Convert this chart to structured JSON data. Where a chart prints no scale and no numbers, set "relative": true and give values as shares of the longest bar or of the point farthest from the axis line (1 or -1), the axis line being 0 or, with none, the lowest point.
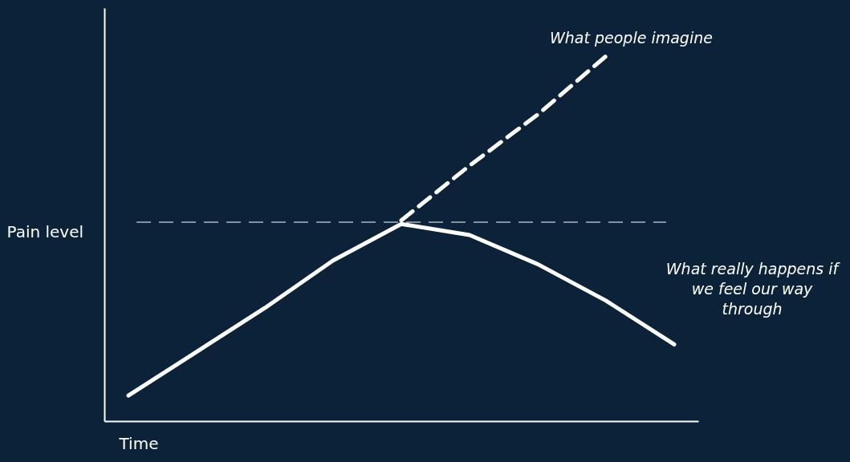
{
  "chart_data": {
    "type": "line",
    "relative": true,
    "xlabel": "Time",
    "ylabel": "Pain level",
    "categories": [
      null,
      null,
      null,
      null,
      null,
      null,
      null,
      null,
      null
    ],
    "grid": false,
    "marker": "none",
    "series": [
      {
        "name": "What people imagine",
        "color": "#ffffff",
        "line_style": "dashed",
        "values": [
          null,
          null,
          null,
          null,
          0.55,
          0.7,
          0.84,
          1.0,
          null
        ]
      },
      {
        "name": "What really happens if we feel our way through",
        "color": "#ffffff",
        "line_style": "solid",
        "values": [
          0.07,
          0.19,
          0.31,
          0.44,
          0.54,
          0.51,
          0.43,
          0.33,
          0.21
        ]
      }
    ],
    "ref_lines": [
      {
        "axis": "y",
        "value": 0.545,
        "label": null,
        "color": "#ffffff",
        "line_style": "dashed"
      }
    ]
  }
}
